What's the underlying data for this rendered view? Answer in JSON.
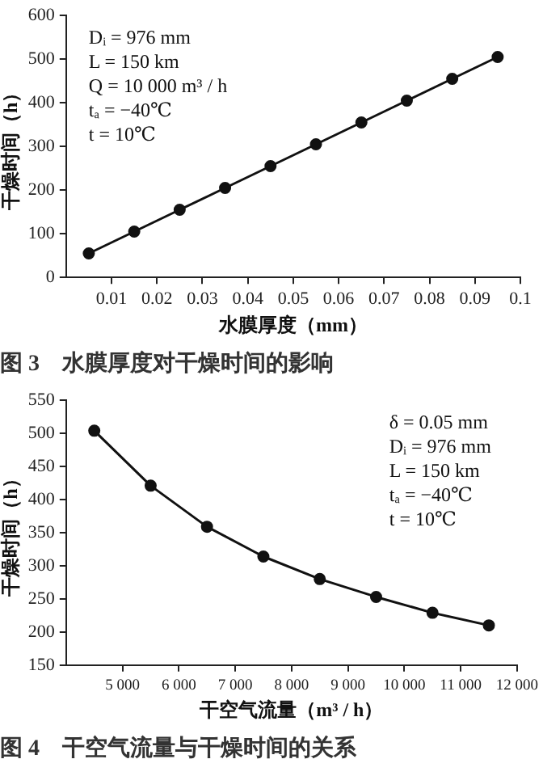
{
  "chart_data": [
    {
      "type": "line",
      "title": "图 3　水膜厚度对干燥时间的影响",
      "xlabel": "水膜厚度（mm）",
      "ylabel": "干燥时间（h）",
      "x": [
        0.005,
        0.015,
        0.025,
        0.035,
        0.045,
        0.055,
        0.065,
        0.075,
        0.085,
        0.095
      ],
      "series": [
        {
          "color": "#111111",
          "values": [
            55,
            105,
            155,
            205,
            255,
            305,
            355,
            405,
            455,
            505
          ]
        }
      ],
      "xlim": [
        0,
        0.1
      ],
      "xticks": [
        0.01,
        0.02,
        0.03,
        0.04,
        0.05,
        0.06,
        0.07,
        0.08,
        0.09,
        0.1
      ],
      "ylim": [
        0,
        600
      ],
      "yticks": [
        0,
        100,
        200,
        300,
        400,
        500,
        600
      ],
      "annotations": [
        "Dᵢ = 976 mm",
        "L = 150 km",
        "Q = 10 000 m³ / h",
        "tₐ = −40℃",
        "t = 10℃"
      ],
      "grid": false,
      "legend": false,
      "marker": "circle",
      "line_style": "solid"
    },
    {
      "type": "line",
      "title": "图 4　干空气流量与干燥时间的关系",
      "xlabel": "干空气流量（m³ / h）",
      "ylabel": "干燥时间（h）",
      "x": [
        4500,
        5500,
        6500,
        7500,
        8500,
        9500,
        10500,
        11500
      ],
      "series": [
        {
          "color": "#111111",
          "values": [
            504,
            421,
            359,
            314,
            280,
            253,
            229,
            210
          ]
        }
      ],
      "xlim": [
        4000,
        12000
      ],
      "xticks": [
        {
          "value": 5000,
          "label": "5 000"
        },
        {
          "value": 6000,
          "label": "6 000"
        },
        {
          "value": 7000,
          "label": "7 000"
        },
        {
          "value": 8000,
          "label": "8 000"
        },
        {
          "value": 9000,
          "label": "9 000"
        },
        {
          "value": 10000,
          "label": "10 000"
        },
        {
          "value": 11000,
          "label": "11 000"
        },
        {
          "value": 12000,
          "label": "12 000"
        }
      ],
      "ylim": [
        150,
        550
      ],
      "yticks": [
        150,
        200,
        250,
        300,
        350,
        400,
        450,
        500,
        550
      ],
      "annotations": [
        "δ = 0.05 mm",
        "Dᵢ = 976 mm",
        "L = 150 km",
        "tₐ = −40℃",
        "t = 10℃"
      ],
      "grid": false,
      "legend": false,
      "marker": "circle",
      "line_style": "solid"
    }
  ]
}
